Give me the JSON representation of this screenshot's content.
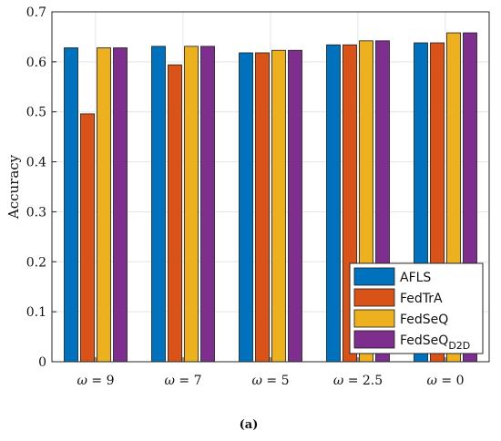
{
  "chart_data": {
    "type": "bar",
    "title": "",
    "xlabel": "",
    "ylabel": "Accuracy",
    "caption": "(a)",
    "categories": [
      {
        "symbol": "ω",
        "value": "= 9"
      },
      {
        "symbol": "ω",
        "value": "= 7"
      },
      {
        "symbol": "ω",
        "value": "= 5"
      },
      {
        "symbol": "ω",
        "value": "= 2.5"
      },
      {
        "symbol": "ω",
        "value": "= 0"
      }
    ],
    "series": [
      {
        "name": "AFLS",
        "name_sub": "",
        "color": "#0072BD",
        "values": [
          0.628,
          0.631,
          0.618,
          0.634,
          0.638
        ]
      },
      {
        "name": "FedTrA",
        "name_sub": "",
        "color": "#D95319",
        "values": [
          0.496,
          0.594,
          0.618,
          0.634,
          0.638
        ]
      },
      {
        "name": "FedSeQ",
        "name_sub": "",
        "color": "#EDB120",
        "values": [
          0.628,
          0.631,
          0.623,
          0.642,
          0.658
        ]
      },
      {
        "name": "FedSeQ",
        "name_sub": "D2D",
        "color": "#7E2F8E",
        "values": [
          0.628,
          0.631,
          0.623,
          0.642,
          0.658
        ]
      }
    ],
    "ylim": [
      0,
      0.7
    ],
    "yticks": [
      "0",
      "0.1",
      "0.2",
      "0.3",
      "0.4",
      "0.5",
      "0.6",
      "0.7"
    ],
    "grid": true,
    "legend_position": "bottom-right"
  }
}
